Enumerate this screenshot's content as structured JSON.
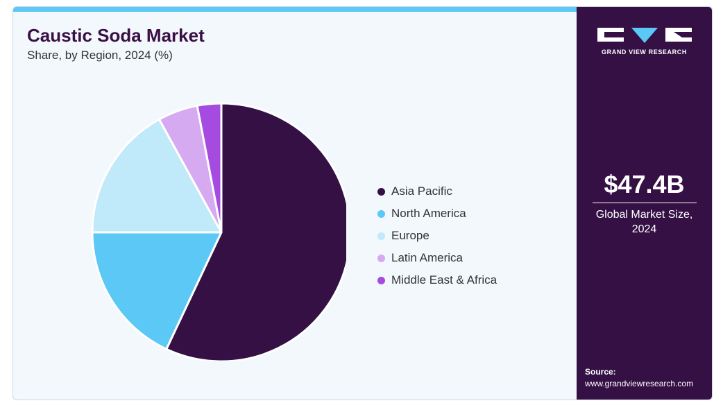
{
  "header": {
    "title": "Caustic Soda Market",
    "subtitle": "Share, by Region, 2024 (%)"
  },
  "brand": {
    "logo_text": "GRAND VIEW RESEARCH"
  },
  "market": {
    "size_value": "$47.4B",
    "size_label": "Global Market Size, 2024"
  },
  "source": {
    "label": "Source:",
    "url": "www.grandviewresearch.com"
  },
  "colors": {
    "accent_bar": "#5bc8f5",
    "side_panel": "#351045",
    "background": "#f2f8fc"
  },
  "chart_data": {
    "type": "pie",
    "title": "Caustic Soda Market",
    "subtitle": "Share, by Region, 2024 (%)",
    "legend_position": "right",
    "categories": [
      "Asia Pacific",
      "North America",
      "Europe",
      "Latin America",
      "Middle East & Africa"
    ],
    "values": [
      57,
      18,
      17,
      5,
      3
    ],
    "colors": [
      "#351045",
      "#5bc8f5",
      "#c0e9fa",
      "#d6aaf0",
      "#a64be0"
    ]
  }
}
